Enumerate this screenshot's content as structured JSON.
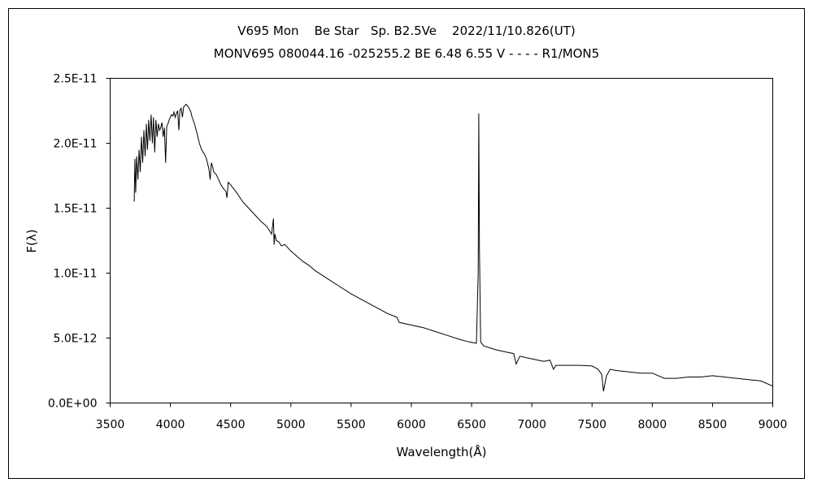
{
  "chart_data": {
    "type": "line",
    "title": "V695 Mon    Be Star   Sp. B2.5Ve    2022/11/10.826(UT)",
    "subtitle": "MONV695 080044.16 -025255.2 BE 6.48 6.55 V - - - - R1/MON5",
    "xlabel": "Wavelength(Å)",
    "ylabel": "F(λ)",
    "xlim": [
      3500,
      9000
    ],
    "ylim": [
      0,
      2.5e-11
    ],
    "x_ticks": [
      3500,
      4000,
      4500,
      5000,
      5500,
      6000,
      6500,
      7000,
      7500,
      8000,
      8500,
      9000
    ],
    "x_tick_labels": [
      "3500",
      "4000",
      "4500",
      "5000",
      "5500",
      "6000",
      "6500",
      "7000",
      "7500",
      "8000",
      "8500",
      "9000"
    ],
    "y_ticks": [
      0,
      5e-12,
      1e-11,
      1.5e-11,
      2e-11,
      2.5e-11
    ],
    "y_tick_labels": [
      "0.0E+00",
      "5.0E-12",
      "1.0E-11",
      "1.5E-11",
      "2.0E-11",
      "2.5E-11"
    ],
    "grid": false,
    "line_color": "#000000",
    "series": [
      {
        "x": [
          3700,
          3705,
          3712,
          3720,
          3730,
          3740,
          3750,
          3760,
          3770,
          3780,
          3790,
          3800,
          3810,
          3820,
          3830,
          3840,
          3850,
          3860,
          3870,
          3880,
          3890,
          3900,
          3910,
          3920,
          3930,
          3940,
          3950,
          3960,
          3970,
          3980,
          3990,
          4000,
          4010,
          4020,
          4030,
          4040,
          4050,
          4060,
          4070,
          4080,
          4090,
          4100,
          4110,
          4120,
          4130,
          4150,
          4170,
          4180,
          4200,
          4220,
          4240,
          4260,
          4280,
          4300,
          4320,
          4330,
          4340,
          4350,
          4360,
          4380,
          4400,
          4420,
          4440,
          4460,
          4470,
          4480,
          4500,
          4550,
          4600,
          4650,
          4700,
          4750,
          4800,
          4840,
          4855,
          4861,
          4867,
          4880,
          4900,
          4922,
          4950,
          5000,
          5050,
          5100,
          5150,
          5200,
          5300,
          5400,
          5500,
          5600,
          5700,
          5800,
          5880,
          5900,
          6000,
          6100,
          6200,
          6300,
          6400,
          6480,
          6540,
          6555,
          6560,
          6565,
          6575,
          6600,
          6700,
          6800,
          6850,
          6870,
          6900,
          7000,
          7100,
          7150,
          7180,
          7200,
          7250,
          7300,
          7400,
          7500,
          7550,
          7580,
          7595,
          7605,
          7620,
          7650,
          7700,
          7800,
          7900,
          8000,
          8100,
          8200,
          8300,
          8400,
          8500,
          8600,
          8700,
          8800,
          8900,
          9000
        ],
        "y": [
          1.55e-11,
          1.88e-11,
          1.62e-11,
          1.9e-11,
          1.72e-11,
          1.95e-11,
          1.78e-11,
          2.05e-11,
          1.85e-11,
          2.1e-11,
          1.9e-11,
          2.15e-11,
          1.95e-11,
          2.18e-11,
          2.02e-11,
          2.22e-11,
          2e-11,
          2.2e-11,
          1.93e-11,
          2.18e-11,
          2.05e-11,
          2.15e-11,
          2.1e-11,
          2.12e-11,
          2.16e-11,
          2.05e-11,
          2.12e-11,
          1.85e-11,
          2.13e-11,
          2.15e-11,
          2.18e-11,
          2.2e-11,
          2.22e-11,
          2.21e-11,
          2.24e-11,
          2.2e-11,
          2.23e-11,
          2.25e-11,
          2.1e-11,
          2.26e-11,
          2.27e-11,
          2.2e-11,
          2.28e-11,
          2.29e-11,
          2.3e-11,
          2.28e-11,
          2.24e-11,
          2.2e-11,
          2.15e-11,
          2.08e-11,
          2e-11,
          1.95e-11,
          1.92e-11,
          1.88e-11,
          1.8e-11,
          1.72e-11,
          1.85e-11,
          1.82e-11,
          1.78e-11,
          1.76e-11,
          1.72e-11,
          1.68e-11,
          1.65e-11,
          1.63e-11,
          1.58e-11,
          1.7e-11,
          1.68e-11,
          1.62e-11,
          1.55e-11,
          1.5e-11,
          1.45e-11,
          1.4e-11,
          1.36e-11,
          1.3e-11,
          1.42e-11,
          1.22e-11,
          1.3e-11,
          1.25e-11,
          1.24e-11,
          1.21e-11,
          1.22e-11,
          1.17e-11,
          1.13e-11,
          1.09e-11,
          1.06e-11,
          1.02e-11,
          9.6e-12,
          9e-12,
          8.4e-12,
          7.9e-12,
          7.4e-12,
          6.9e-12,
          6.6e-12,
          6.2e-12,
          6e-12,
          5.8e-12,
          5.5e-12,
          5.2e-12,
          4.9e-12,
          4.7e-12,
          4.6e-12,
          1e-11,
          2.23e-11,
          1.2e-11,
          4.7e-12,
          4.4e-12,
          4.1e-12,
          3.9e-12,
          3.8e-12,
          3e-12,
          3.6e-12,
          3.4e-12,
          3.2e-12,
          3.3e-12,
          2.6e-12,
          2.9e-12,
          2.9e-12,
          2.9e-12,
          2.9e-12,
          2.85e-12,
          2.6e-12,
          2.2e-12,
          9e-13,
          1.4e-12,
          2.1e-12,
          2.6e-12,
          2.5e-12,
          2.4e-12,
          2.3e-12,
          2.3e-12,
          1.9e-12,
          1.9e-12,
          2e-12,
          2e-12,
          2.1e-12,
          2e-12,
          1.9e-12,
          1.8e-12,
          1.7e-12,
          1.3e-12
        ]
      }
    ]
  }
}
